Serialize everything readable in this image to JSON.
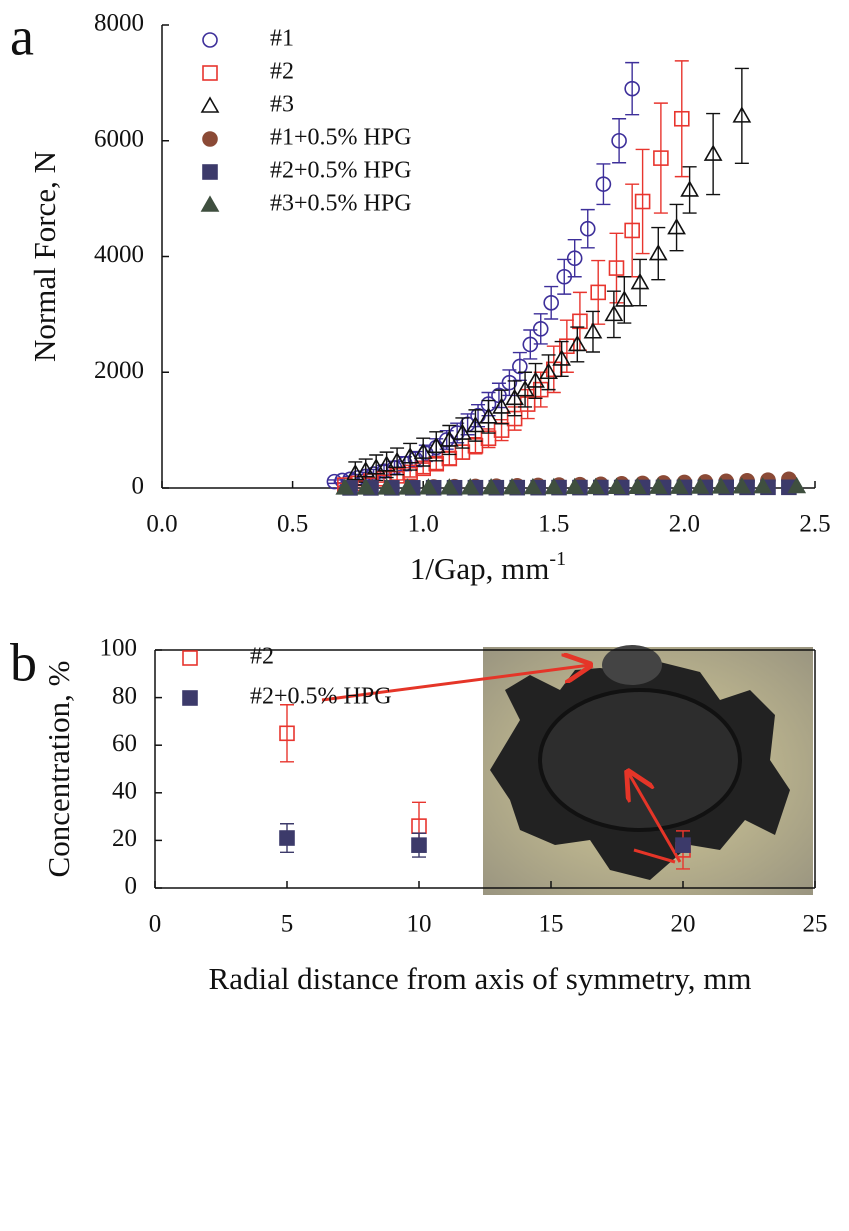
{
  "chart_data": [
    {
      "type": "scatter",
      "panel": "a",
      "ylabel": "Normal Force, N",
      "xlabel": "1/Gap, mm",
      "xlabel_sup": "-1",
      "xlim": [
        0,
        2.5
      ],
      "ylim": [
        0,
        8000
      ],
      "xticks": [
        {
          "value": 0,
          "label": "0.0"
        },
        0.5,
        {
          "value": 1,
          "label": "1.0"
        },
        1.5,
        {
          "value": 2,
          "label": "2.0"
        },
        2.5
      ],
      "yticks": [
        0,
        2000,
        4000,
        6000,
        8000
      ],
      "box": false,
      "series": [
        {
          "name": "#1",
          "color": "#3d2f9a",
          "marker": "circle",
          "filled": false,
          "x": [
            0.66,
            0.69,
            0.72,
            0.75,
            0.78,
            0.81,
            0.85,
            0.89,
            0.93,
            0.97,
            1.01,
            1.05,
            1.09,
            1.13,
            1.17,
            1.21,
            1.25,
            1.29,
            1.33,
            1.37,
            1.41,
            1.45,
            1.49,
            1.54,
            1.58,
            1.63,
            1.69,
            1.75,
            1.8
          ],
          "values": [
            110,
            130,
            150,
            175,
            200,
            240,
            290,
            350,
            420,
            500,
            600,
            700,
            830,
            950,
            1100,
            1250,
            1450,
            1600,
            1820,
            2100,
            2480,
            2750,
            3200,
            3650,
            3970,
            4480,
            5250,
            6000,
            6900
          ],
          "errors": [
            30,
            40,
            50,
            60,
            70,
            80,
            100,
            110,
            120,
            130,
            140,
            150,
            160,
            170,
            180,
            190,
            200,
            210,
            220,
            240,
            250,
            260,
            280,
            300,
            320,
            330,
            350,
            380,
            450
          ]
        },
        {
          "name": "#2",
          "color": "#e8352e",
          "marker": "square",
          "filled": false,
          "x": [
            0.7,
            0.75,
            0.8,
            0.85,
            0.9,
            0.95,
            1.0,
            1.05,
            1.1,
            1.15,
            1.2,
            1.25,
            1.3,
            1.35,
            1.4,
            1.45,
            1.5,
            1.55,
            1.6,
            1.67,
            1.74,
            1.8,
            1.84,
            1.91,
            1.99
          ],
          "values": [
            50,
            80,
            120,
            160,
            210,
            270,
            340,
            420,
            510,
            620,
            730,
            860,
            1000,
            1200,
            1450,
            1700,
            2050,
            2450,
            2880,
            3380,
            3800,
            4450,
            4950,
            5700,
            6380
          ],
          "errors": [
            30,
            40,
            50,
            60,
            70,
            80,
            90,
            100,
            110,
            120,
            140,
            160,
            180,
            200,
            250,
            300,
            400,
            450,
            500,
            550,
            600,
            800,
            900,
            950,
            1000
          ]
        },
        {
          "name": "#3",
          "color": "#111111",
          "marker": "triangle",
          "filled": false,
          "x": [
            0.74,
            0.78,
            0.82,
            0.86,
            0.9,
            0.95,
            1.0,
            1.05,
            1.1,
            1.15,
            1.2,
            1.25,
            1.3,
            1.35,
            1.39,
            1.43,
            1.48,
            1.53,
            1.59,
            1.65,
            1.73,
            1.77,
            1.83,
            1.9,
            1.97,
            2.02,
            2.11,
            2.22
          ],
          "values": [
            250,
            300,
            350,
            400,
            460,
            540,
            620,
            720,
            830,
            950,
            1080,
            1230,
            1400,
            1550,
            1700,
            1850,
            2000,
            2230,
            2480,
            2700,
            3000,
            3250,
            3550,
            4050,
            4500,
            5150,
            5770,
            6430
          ],
          "errors": [
            200,
            200,
            220,
            220,
            230,
            230,
            240,
            250,
            250,
            260,
            270,
            280,
            290,
            300,
            300,
            300,
            300,
            300,
            300,
            350,
            400,
            400,
            400,
            450,
            400,
            400,
            700,
            820
          ]
        },
        {
          "name": "#1+0.5% HPG",
          "color": "#8b4a36",
          "marker": "circle",
          "filled": true,
          "x": [
            0.72,
            0.8,
            0.88,
            0.96,
            1.04,
            1.12,
            1.2,
            1.28,
            1.36,
            1.44,
            1.52,
            1.6,
            1.68,
            1.76,
            1.84,
            1.92,
            2.0,
            2.08,
            2.16,
            2.24,
            2.32,
            2.4
          ],
          "values": [
            5,
            8,
            10,
            14,
            18,
            22,
            27,
            32,
            38,
            44,
            50,
            57,
            64,
            72,
            80,
            88,
            96,
            105,
            115,
            125,
            135,
            150
          ]
        },
        {
          "name": "#2+0.5% HPG",
          "color": "#3c3a6a",
          "marker": "square",
          "filled": true,
          "x": [
            0.72,
            0.8,
            0.88,
            0.96,
            1.04,
            1.12,
            1.2,
            1.28,
            1.36,
            1.44,
            1.52,
            1.6,
            1.68,
            1.76,
            1.84,
            1.92,
            2.0,
            2.08,
            2.16,
            2.24,
            2.32,
            2.4
          ],
          "values": [
            2,
            2,
            3,
            3,
            4,
            4,
            5,
            5,
            6,
            6,
            7,
            7,
            8,
            8,
            9,
            9,
            10,
            10,
            11,
            11,
            12,
            12
          ]
        },
        {
          "name": "#3+0.5% HPG",
          "color": "#3f4f3f",
          "marker": "triangle",
          "filled": true,
          "x": [
            0.7,
            0.78,
            0.86,
            0.94,
            1.02,
            1.1,
            1.18,
            1.26,
            1.34,
            1.42,
            1.5,
            1.58,
            1.66,
            1.74,
            1.82,
            1.9,
            1.98,
            2.06,
            2.14,
            2.22,
            2.3,
            2.43
          ],
          "values": [
            3,
            3,
            4,
            4,
            5,
            5,
            6,
            7,
            8,
            9,
            10,
            11,
            12,
            13,
            14,
            15,
            16,
            18,
            20,
            22,
            24,
            26
          ]
        }
      ]
    },
    {
      "type": "scatter",
      "panel": "b",
      "ylabel": "Concentration, %",
      "xlabel": "Radial distance from axis of symmetry, mm",
      "xlim": [
        0,
        25
      ],
      "ylim": [
        0,
        100
      ],
      "xticks": [
        0,
        5,
        10,
        15,
        20,
        25
      ],
      "yticks": [
        0,
        20,
        40,
        60,
        80,
        100
      ],
      "box": true,
      "series": [
        {
          "name": "#2",
          "color": "#e8352e",
          "marker": "square",
          "filled": false,
          "x": [
            5,
            10,
            20
          ],
          "values": [
            65,
            26,
            16
          ],
          "errors": [
            12,
            10,
            8
          ]
        },
        {
          "name": "#2+0.5% HPG",
          "color": "#3c3a6a",
          "marker": "square",
          "filled": true,
          "x": [
            5,
            10,
            20
          ],
          "values": [
            21,
            18,
            18
          ],
          "errors": [
            6,
            5,
            2
          ]
        }
      ]
    }
  ]
}
